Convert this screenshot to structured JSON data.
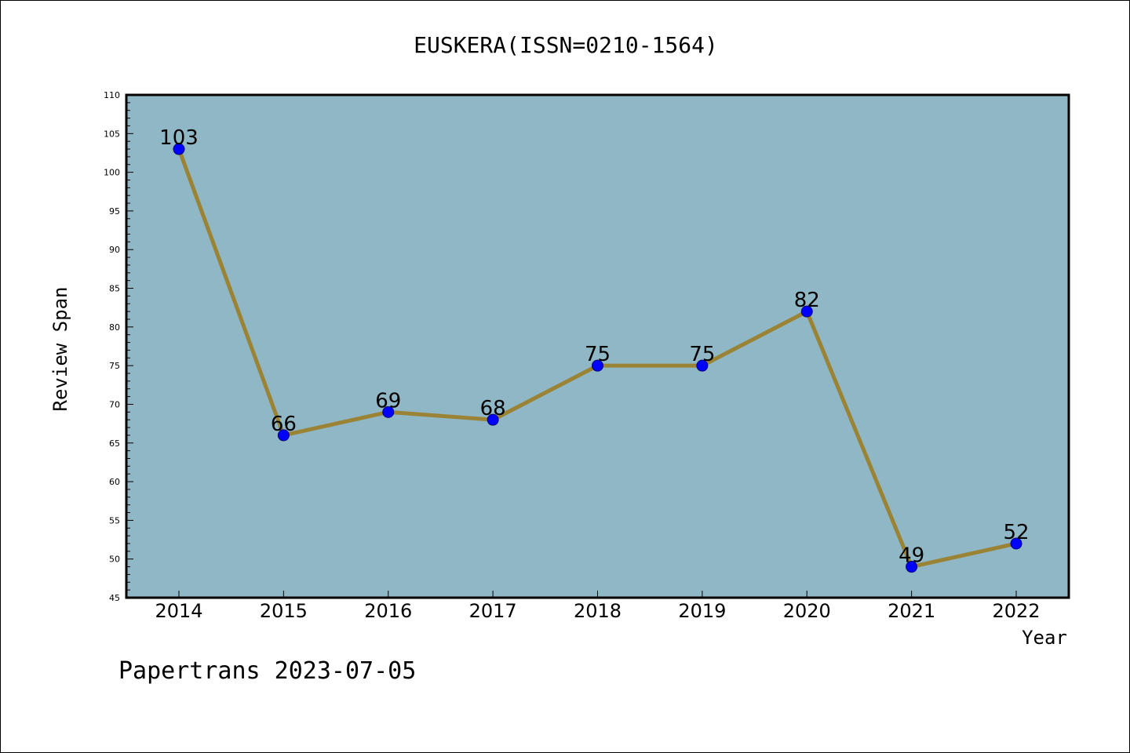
{
  "chart_data": {
    "type": "line",
    "title": "EUSKERA(ISSN=0210-1564)",
    "xlabel": "Year",
    "ylabel": "Review Span",
    "categories": [
      "2014",
      "2015",
      "2016",
      "2017",
      "2018",
      "2019",
      "2020",
      "2021",
      "2022"
    ],
    "values": [
      103,
      66,
      69,
      68,
      75,
      75,
      82,
      49,
      52
    ],
    "ylim": [
      45,
      110
    ],
    "yticks": [
      45,
      50,
      55,
      60,
      65,
      70,
      75,
      80,
      85,
      90,
      95,
      100,
      105,
      110
    ],
    "grid": false,
    "legend": "none",
    "colors": {
      "plot_background": "#8fb7c5",
      "line": "#9a8335",
      "marker": "#0000ff",
      "axes": "#000000"
    }
  },
  "footer": "Papertrans 2023-07-05"
}
